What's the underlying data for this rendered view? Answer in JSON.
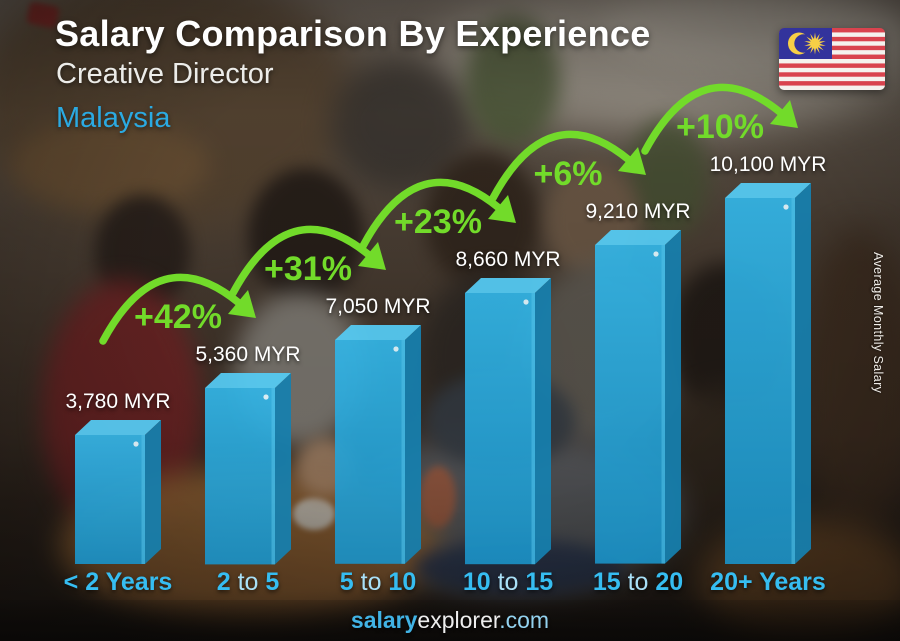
{
  "header": {
    "title": "Salary Comparison By Experience",
    "subtitle": "Creative Director",
    "country": "Malaysia"
  },
  "flag": {
    "alt": "Flag of Malaysia"
  },
  "chart_data": {
    "type": "bar",
    "title": "Salary Comparison By Experience",
    "subject": "Creative Director",
    "region": "Malaysia",
    "categories": [
      "< 2 Years",
      "2 to 5",
      "5 to 10",
      "10 to 15",
      "15 to 20",
      "20+ Years"
    ],
    "values": [
      3780,
      5360,
      7050,
      8660,
      9210,
      10100
    ],
    "value_labels": [
      "3,780 MYR",
      "5,360 MYR",
      "7,050 MYR",
      "8,660 MYR",
      "9,210 MYR",
      "10,100 MYR"
    ],
    "currency": "MYR",
    "pct_changes": [
      "+42%",
      "+31%",
      "+23%",
      "+6%",
      "+10%"
    ],
    "xlabel": "",
    "ylabel": "Average Monthly Salary",
    "ylim": [
      0,
      10100
    ],
    "grid": false,
    "legend": "none"
  },
  "footer": {
    "brand_bold": "salary",
    "brand_regular": "explorer",
    "suffix": ".com"
  },
  "colors": {
    "bar_front_top": "#33b5e6",
    "bar_front_bottom": "#1b90c4",
    "bar_top_face": "#55ccf5",
    "bar_side_face": "#1680af",
    "bar_highlight": "#eafaff",
    "increase_green": "#72db2a",
    "axis_label_blue": "#36bdf1",
    "axis_label_muted": "#a9e0f7",
    "accent_blue": "#2baae2",
    "value_text": "#ffffff",
    "flag_red": "#d9434e",
    "flag_white": "#f5f2ee",
    "flag_canton_blue": "#33339c",
    "flag_yellow": "#f7cf46"
  }
}
